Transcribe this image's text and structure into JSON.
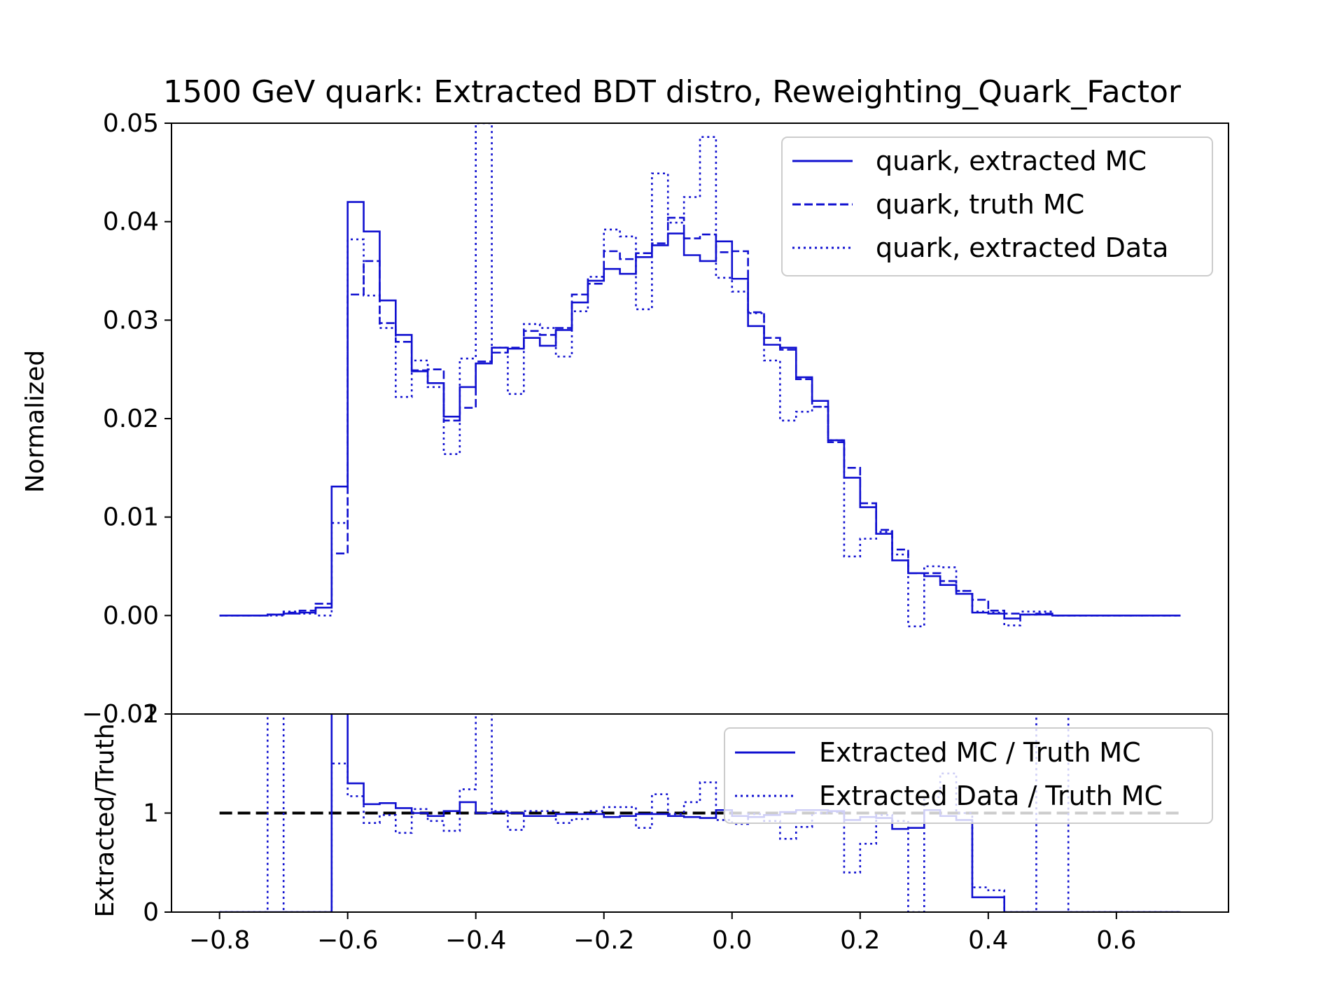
{
  "chart_data": {
    "title": "1500 GeV quark: Extracted BDT distro, Reweighting_Quark_Factor",
    "top": {
      "type": "line",
      "step": true,
      "ylabel": "Normalized",
      "ylim": [
        -0.01,
        0.05
      ],
      "yticks": [
        "−0.01",
        "0.00",
        "0.01",
        "0.02",
        "0.03",
        "0.04",
        "0.05"
      ],
      "bin_edges": [
        -0.8,
        -0.775,
        -0.75,
        -0.725,
        -0.7,
        -0.675,
        -0.65,
        -0.625,
        -0.6,
        -0.575,
        -0.55,
        -0.525,
        -0.5,
        -0.475,
        -0.45,
        -0.425,
        -0.4,
        -0.375,
        -0.35,
        -0.325,
        -0.3,
        -0.275,
        -0.25,
        -0.225,
        -0.2,
        -0.175,
        -0.15,
        -0.125,
        -0.1,
        -0.075,
        -0.05,
        -0.025,
        0.0,
        0.025,
        0.05,
        0.075,
        0.1,
        0.125,
        0.15,
        0.175,
        0.2,
        0.225,
        0.25,
        0.275,
        0.3,
        0.325,
        0.35,
        0.375,
        0.4,
        0.425,
        0.45,
        0.475,
        0.5,
        0.525,
        0.55,
        0.575,
        0.6,
        0.625,
        0.65,
        0.675,
        0.7
      ],
      "series": [
        {
          "name": "quark, extracted MC",
          "style": "solid",
          "color": "#1010d0",
          "values": [
            0.0,
            0.0,
            0.0,
            0.0001,
            0.0002,
            0.0003,
            0.0008,
            0.0131,
            0.042,
            0.039,
            0.032,
            0.0285,
            0.0248,
            0.0236,
            0.0202,
            0.0232,
            0.0256,
            0.0272,
            0.0271,
            0.0282,
            0.0274,
            0.029,
            0.0318,
            0.034,
            0.0352,
            0.0347,
            0.0364,
            0.0376,
            0.0388,
            0.0366,
            0.036,
            0.038,
            0.0342,
            0.0294,
            0.0275,
            0.0272,
            0.0242,
            0.0218,
            0.0178,
            0.014,
            0.011,
            0.0083,
            0.0056,
            0.0043,
            0.004,
            0.0031,
            0.0022,
            0.0003,
            0.0002,
            -0.0003,
            0.0001,
            0.0001,
            0.0,
            0.0,
            0.0,
            0.0,
            0.0,
            0.0,
            0.0,
            0.0
          ]
        },
        {
          "name": "quark, truth MC",
          "style": "dashed",
          "color": "#1010d0",
          "values": [
            0.0,
            0.0,
            0.0,
            0.0001,
            0.0003,
            0.0005,
            0.0012,
            0.0063,
            0.0326,
            0.036,
            0.0297,
            0.0278,
            0.0249,
            0.025,
            0.0198,
            0.0211,
            0.0258,
            0.0267,
            0.0272,
            0.0289,
            0.0285,
            0.0292,
            0.0326,
            0.0337,
            0.037,
            0.0362,
            0.0368,
            0.0378,
            0.0404,
            0.0383,
            0.0387,
            0.0369,
            0.037,
            0.0308,
            0.0282,
            0.027,
            0.024,
            0.0212,
            0.0176,
            0.015,
            0.0114,
            0.0087,
            0.0067,
            0.0043,
            0.0043,
            0.0035,
            0.0025,
            0.0016,
            0.0005,
            0.0002,
            0.0001,
            0.0002,
            0.0,
            0.0,
            0.0,
            0.0,
            0.0,
            0.0,
            0.0,
            0.0
          ]
        },
        {
          "name": "quark, extracted Data",
          "style": "dotted",
          "color": "#1010d0",
          "values": [
            0.0,
            0.0,
            0.0,
            0.0,
            0.0004,
            0.0002,
            0.0,
            0.0094,
            0.0382,
            0.0325,
            0.0292,
            0.0222,
            0.0259,
            0.0232,
            0.0164,
            0.0261,
            0.05,
            0.0272,
            0.0225,
            0.0296,
            0.0292,
            0.0263,
            0.0309,
            0.0344,
            0.0392,
            0.0385,
            0.0311,
            0.0449,
            0.0399,
            0.0425,
            0.0486,
            0.0343,
            0.0329,
            0.0307,
            0.0259,
            0.0198,
            0.0207,
            0.0212,
            0.0178,
            0.006,
            0.0078,
            0.0085,
            0.0062,
            -0.0011,
            0.005,
            0.0049,
            0.0025,
            0.0004,
            0.0003,
            -0.001,
            0.0004,
            0.0004,
            0.0,
            0.0,
            0.0,
            0.0,
            0.0,
            0.0,
            0.0,
            0.0
          ]
        }
      ]
    },
    "bottom": {
      "type": "line",
      "step": true,
      "ylabel": "Extracted/Truth",
      "ylim": [
        0,
        2
      ],
      "yticks": [
        "0",
        "1",
        "2"
      ],
      "xlim": [
        -0.875,
        0.775
      ],
      "xticks": [
        "−0.8",
        "−0.6",
        "−0.4",
        "−0.2",
        "0.0",
        "0.2",
        "0.4",
        "0.6"
      ],
      "reference_line": 1,
      "series": [
        {
          "name": "Extracted MC / Truth MC",
          "style": "solid",
          "color": "#1010d0",
          "values": [
            0.0,
            0.0,
            0.0,
            0.0,
            0.0,
            0.0,
            0.0,
            2.1,
            1.3,
            1.09,
            1.1,
            1.05,
            1.0,
            0.97,
            1.02,
            1.11,
            1.0,
            1.01,
            1.0,
            0.97,
            0.97,
            0.99,
            0.99,
            0.99,
            0.96,
            0.97,
            0.99,
            0.99,
            0.97,
            0.96,
            0.95,
            1.03,
            0.97,
            0.96,
            0.98,
            1.01,
            1.03,
            1.03,
            1.02,
            0.93,
            0.96,
            0.95,
            0.84,
            0.85,
            1.03,
            0.97,
            0.93,
            0.15,
            0.15,
            0.0,
            0.0,
            0.0,
            0.0,
            0.0,
            0.0,
            0.0,
            0.0,
            0.0,
            0.0,
            0.0
          ]
        },
        {
          "name": "Extracted Data / Truth MC",
          "style": "dotted",
          "color": "#1010d0",
          "values": [
            0.0,
            0.0,
            0.0,
            2.1,
            0.0,
            0.0,
            0.0,
            1.5,
            1.17,
            0.9,
            0.98,
            0.8,
            1.04,
            0.92,
            0.82,
            1.24,
            2.1,
            1.02,
            0.83,
            1.02,
            1.02,
            0.9,
            0.94,
            1.02,
            1.06,
            1.06,
            0.85,
            1.19,
            0.99,
            1.11,
            1.31,
            0.93,
            0.89,
            0.99,
            0.92,
            0.74,
            0.86,
            1.0,
            1.01,
            0.4,
            0.69,
            0.98,
            0.92,
            0.0,
            1.16,
            1.4,
            1.0,
            0.25,
            0.22,
            0.0,
            0.0,
            2.1,
            2.1,
            0.0,
            0.0,
            0.0,
            0.0,
            0.0,
            0.0,
            0.0
          ]
        }
      ]
    }
  }
}
